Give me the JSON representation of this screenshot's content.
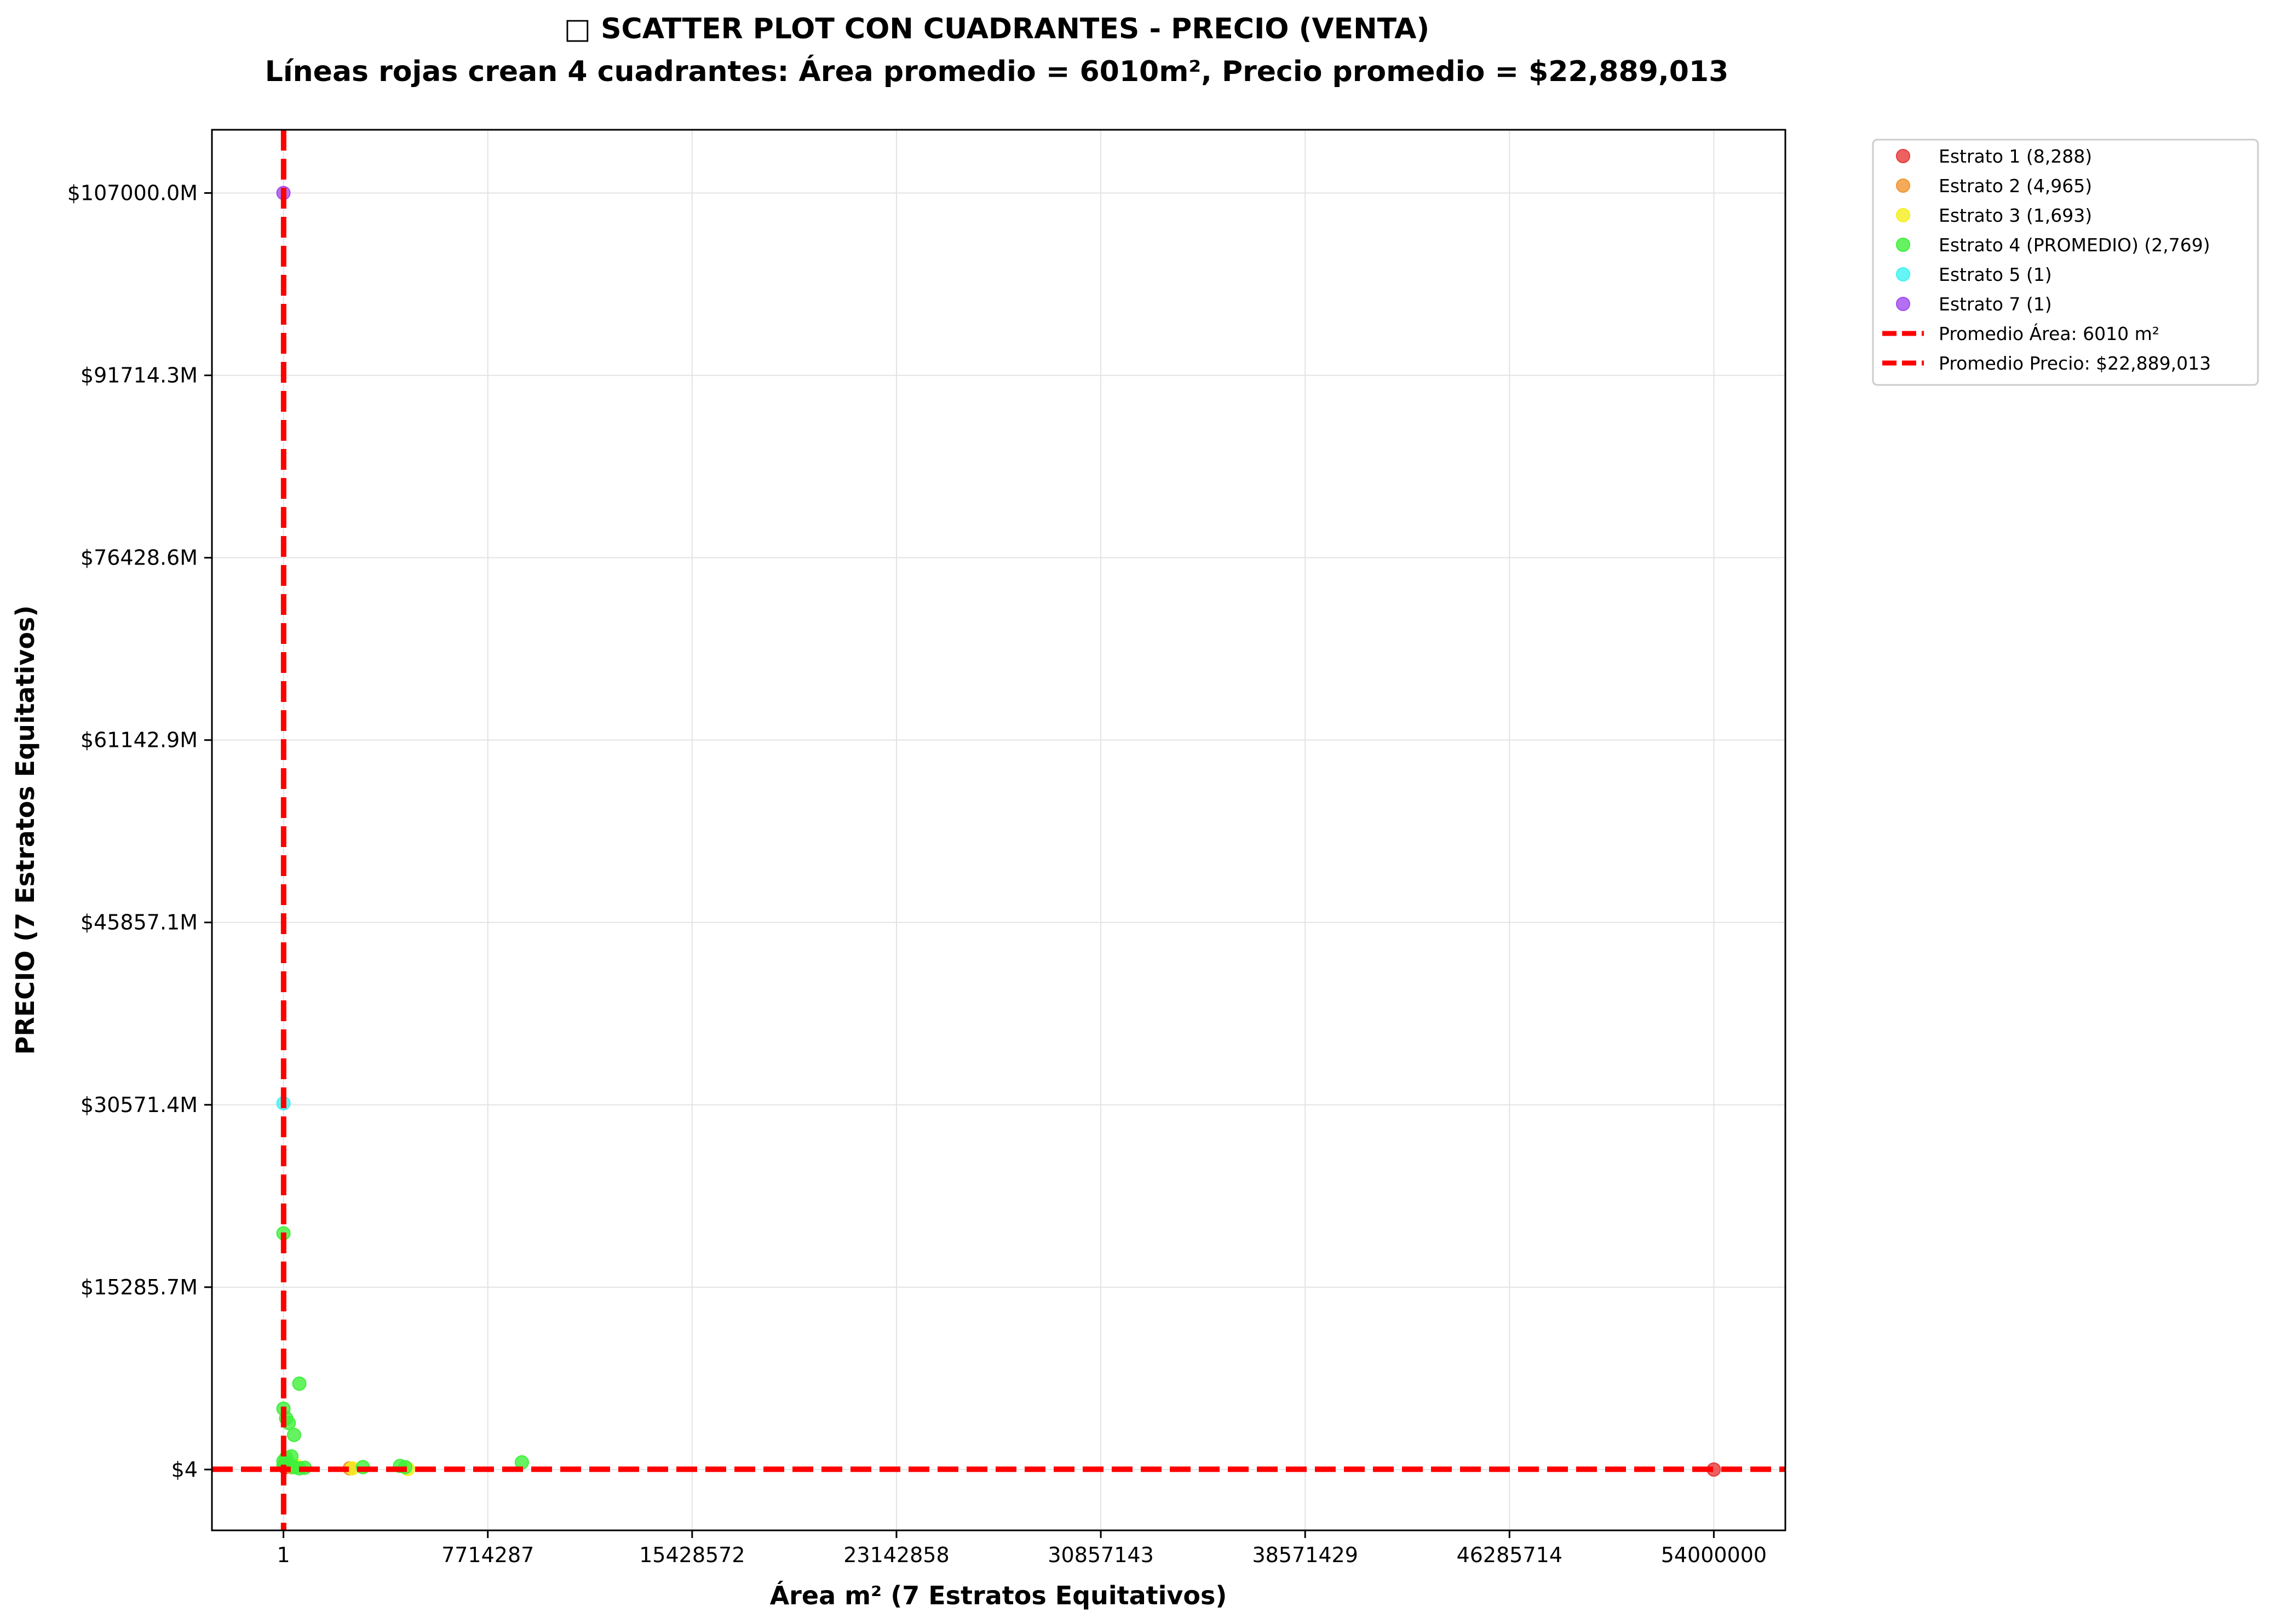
{
  "chart_data": {
    "type": "scatter",
    "title": "□ SCATTER PLOT CON CUADRANTES - PRECIO (VENTA)",
    "subtitle": "Líneas rojas crean 4 cuadrantes: Área promedio = 6010m², Precio promedio = $22,889,013",
    "xlabel": "Área m² (7 Estratos Equitativos)",
    "ylabel": "PRECIO (7 Estratos Equitativos)",
    "xlim": [
      -2700000,
      56700000
    ],
    "ylim": [
      -5100000000,
      112300000000
    ],
    "x_ticks": [
      {
        "value": 1,
        "label": "1"
      },
      {
        "value": 7714287,
        "label": "7714287"
      },
      {
        "value": 15428572,
        "label": "15428572"
      },
      {
        "value": 23142858,
        "label": "23142858"
      },
      {
        "value": 30857143,
        "label": "30857143"
      },
      {
        "value": 38571429,
        "label": "38571429"
      },
      {
        "value": 46285714,
        "label": "46285714"
      },
      {
        "value": 54000000,
        "label": "54000000"
      }
    ],
    "y_ticks": [
      {
        "value": 4,
        "label": "$4"
      },
      {
        "value": 15285700000,
        "label": "$15285.7M"
      },
      {
        "value": 30571400000,
        "label": "$30571.4M"
      },
      {
        "value": 45857100000,
        "label": "$45857.1M"
      },
      {
        "value": 61142900000,
        "label": "$61142.9M"
      },
      {
        "value": 76428600000,
        "label": "$76428.6M"
      },
      {
        "value": 91714300000,
        "label": "$91714.3M"
      },
      {
        "value": 107000000000,
        "label": "$107000.0M"
      }
    ],
    "grid": true,
    "legend_position": "outside-top-right",
    "series": [
      {
        "name": "Estrato 1 (8,288)",
        "color": "#e8393a",
        "points": [
          [
            54000000,
            0
          ],
          [
            20000,
            300000000
          ],
          [
            60000,
            200000000
          ]
        ]
      },
      {
        "name": "Estrato 2 (4,965)",
        "color": "#f39530",
        "points": [
          [
            2500000,
            100000000
          ],
          [
            300000,
            200000000
          ],
          [
            150000,
            400000000
          ]
        ]
      },
      {
        "name": "Estrato 3 (1,693)",
        "color": "#f5ef1e",
        "points": [
          [
            4700000,
            50000000
          ],
          [
            2600000,
            100000000
          ],
          [
            500000,
            300000000
          ]
        ]
      },
      {
        "name": "Estrato 4 (PROMEDIO) (2,769)",
        "color": "#3ef03a",
        "points": [
          [
            0,
            19800000000
          ],
          [
            600000,
            7200000000
          ],
          [
            0,
            5100000000
          ],
          [
            100000,
            4300000000
          ],
          [
            200000,
            3900000000
          ],
          [
            400000,
            2900000000
          ],
          [
            300000,
            1100000000
          ],
          [
            100000,
            1000000000
          ],
          [
            0,
            700000000
          ],
          [
            0,
            400000000
          ],
          [
            200000,
            500000000
          ],
          [
            400000,
            200000000
          ],
          [
            600000,
            100000000
          ],
          [
            9000000,
            600000000
          ],
          [
            4400000,
            300000000
          ],
          [
            4600000,
            200000000
          ],
          [
            3000000,
            200000000
          ],
          [
            800000,
            150000000
          ]
        ]
      },
      {
        "name": "Estrato 5 (1)",
        "color": "#3ef3f3",
        "points": [
          [
            0,
            30700000000
          ]
        ]
      },
      {
        "name": "Estrato 7 (1)",
        "color": "#a14cf0",
        "points": [
          [
            0,
            107000000000
          ]
        ]
      }
    ],
    "reference_lines": [
      {
        "name": "Promedio Área: 6010 m²",
        "orientation": "vertical",
        "value": 6010,
        "color": "#ff0000"
      },
      {
        "name": "Promedio Precio: $22,889,013",
        "orientation": "horizontal",
        "value": 22889013,
        "color": "#ff0000"
      }
    ]
  }
}
